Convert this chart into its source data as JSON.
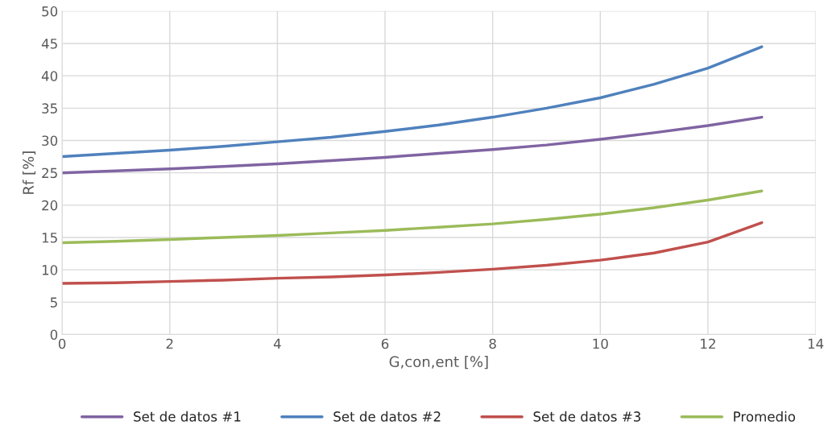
{
  "chart_data": {
    "type": "line",
    "xlabel": "G,con,ent [%]",
    "ylabel": "Rf [%]",
    "x": [
      0,
      1,
      2,
      3,
      4,
      5,
      6,
      7,
      8,
      9,
      10,
      11,
      12,
      13
    ],
    "series": [
      {
        "name": "Set de datos #1",
        "color": "#8064a2",
        "values": [
          25.0,
          25.3,
          25.6,
          26.0,
          26.4,
          26.9,
          27.4,
          28.0,
          28.6,
          29.3,
          30.2,
          31.2,
          32.3,
          33.6
        ]
      },
      {
        "name": "Set de datos #2",
        "color": "#4f81bd",
        "values": [
          27.5,
          28.0,
          28.5,
          29.1,
          29.8,
          30.5,
          31.4,
          32.4,
          33.6,
          35.0,
          36.6,
          38.7,
          41.2,
          44.5
        ]
      },
      {
        "name": "Set de datos #3",
        "color": "#c0504d",
        "values": [
          7.9,
          8.0,
          8.2,
          8.4,
          8.7,
          8.9,
          9.2,
          9.6,
          10.1,
          10.7,
          11.5,
          12.6,
          14.3,
          17.3
        ]
      },
      {
        "name": "Promedio",
        "color": "#9bbb59",
        "values": [
          14.2,
          14.4,
          14.7,
          15.0,
          15.3,
          15.7,
          16.1,
          16.6,
          17.1,
          17.8,
          18.6,
          19.6,
          20.8,
          22.2
        ]
      }
    ],
    "xlim": [
      0,
      14
    ],
    "xticks": [
      0,
      2,
      4,
      6,
      8,
      10,
      12,
      14
    ],
    "ylim": [
      0,
      50
    ],
    "yticks": [
      0,
      5,
      10,
      15,
      20,
      25,
      30,
      35,
      40,
      45,
      50
    ],
    "grid": true,
    "legend": "bottom",
    "marker": "none",
    "line_style": "solid"
  }
}
